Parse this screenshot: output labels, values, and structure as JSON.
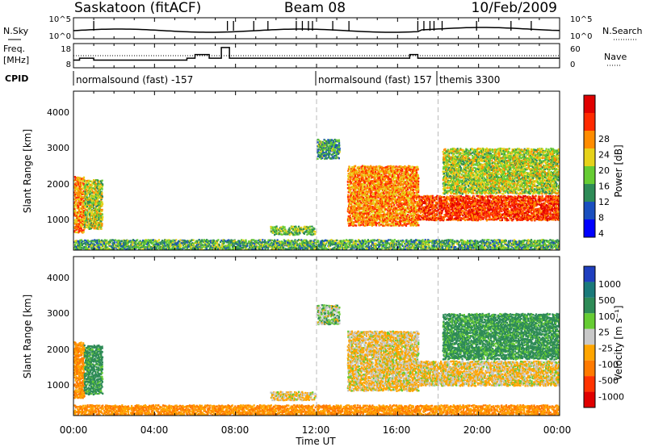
{
  "header": {
    "station": "Saskatoon (fitACF)",
    "beam": "Beam 08",
    "date": "10/Feb/2009"
  },
  "noise_panel": {
    "left_label": "N.Sky",
    "right_label": "N.Search",
    "left_ticks": [
      "10^5",
      "10^0"
    ],
    "right_ticks": [
      "10^5",
      "10^0"
    ]
  },
  "freq_panel": {
    "left_label_1": "Freq.",
    "left_label_2": "[MHz]",
    "right_label": "Nave",
    "left_ticks": [
      "18",
      "8"
    ],
    "right_ticks": [
      "60",
      "0"
    ],
    "freq_steps_mhz": [
      {
        "t": 0.0,
        "f": 10.5
      },
      {
        "t": 0.3,
        "f": 11.6
      },
      {
        "t": 1.0,
        "f": 10.5
      },
      {
        "t": 5.6,
        "f": 11.6
      },
      {
        "t": 6.0,
        "f": 13.6
      },
      {
        "t": 6.7,
        "f": 11.6
      },
      {
        "t": 7.3,
        "f": 17.6
      },
      {
        "t": 7.7,
        "f": 11.6
      },
      {
        "t": 12.0,
        "f": 11.6
      },
      {
        "t": 16.6,
        "f": 13.6
      },
      {
        "t": 17.0,
        "f": 11.6
      },
      {
        "t": 24.0,
        "f": 11.6
      }
    ]
  },
  "cpid": {
    "label": "CPID",
    "segments": [
      {
        "start_hour": 0,
        "text": "normalsound (fast) -157"
      },
      {
        "start_hour": 12,
        "text": "normalsound (fast) 157"
      },
      {
        "start_hour": 18,
        "text": "themis 3300"
      }
    ]
  },
  "x_axis": {
    "title": "Time UT",
    "range_hours": [
      0,
      24
    ],
    "tick_labels": [
      "00:00",
      "04:00",
      "08:00",
      "12:00",
      "16:00",
      "20:00",
      "00:00"
    ],
    "dashed_marks_hours": [
      12,
      18
    ]
  },
  "power_panel": {
    "ylabel": "Slant Range [km]",
    "y_ticks": [
      "1000",
      "2000",
      "3000",
      "4000"
    ],
    "cbar_title": "Power [dB]",
    "cbar_labels": [
      "4",
      "8",
      "12",
      "16",
      "20",
      "24",
      "28"
    ],
    "cbar_colors": [
      "#0000ff",
      "#1a4fbf",
      "#2e8b57",
      "#66cc33",
      "#e6d21a",
      "#ff8c00",
      "#ff2a00",
      "#e00000"
    ]
  },
  "velocity_panel": {
    "ylabel": "Slant Range [km]",
    "y_ticks": [
      "1000",
      "2000",
      "3000",
      "4000"
    ],
    "cbar_title": "Velocity [m s⁻¹]",
    "cbar_labels": [
      "1000",
      "500",
      "100",
      "25",
      "-25",
      "-100",
      "-500",
      "-1000"
    ],
    "cbar_colors": [
      "#1f3fbf",
      "#1a7a7a",
      "#2e8b57",
      "#66cc33",
      "#c8c8c8",
      "#ffa500",
      "#ff7a00",
      "#ff3300",
      "#e00000"
    ]
  },
  "chart_data": {
    "type": "heatmap",
    "x_range_hours": [
      0,
      24
    ],
    "y_range_km": [
      180,
      4700
    ],
    "regions": [
      {
        "name": "early-band",
        "t0": 0.0,
        "t1": 0.5,
        "r0": 700,
        "r1": 2300,
        "power": 20,
        "velocity": -100
      },
      {
        "name": "early-arc",
        "t0": 0.5,
        "t1": 1.4,
        "r0": 800,
        "r1": 2200,
        "power": 14,
        "velocity": 100
      },
      {
        "name": "mid-echo",
        "t0": 9.7,
        "t1": 11.9,
        "r0": 640,
        "r1": 880,
        "power": 12,
        "velocity": -25
      },
      {
        "name": "high-patch",
        "t0": 12.0,
        "t1": 13.1,
        "r0": 2800,
        "r1": 3350,
        "power": 9,
        "velocity": 25
      },
      {
        "name": "main-band",
        "t0": 13.5,
        "t1": 17.0,
        "r0": 900,
        "r1": 2600,
        "power": 20,
        "velocity": -25
      },
      {
        "name": "late-band",
        "t0": 17.0,
        "t1": 24.0,
        "r0": 1050,
        "r1": 1750,
        "power": 24,
        "velocity": -25
      },
      {
        "name": "late-upper",
        "t0": 18.2,
        "t1": 24.0,
        "r0": 1800,
        "r1": 3100,
        "power": 14,
        "velocity": 100
      },
      {
        "name": "ground-scatter",
        "t0": 0.0,
        "t1": 24.0,
        "r0": 180,
        "r1": 500,
        "power": 10,
        "velocity": -100
      }
    ]
  }
}
